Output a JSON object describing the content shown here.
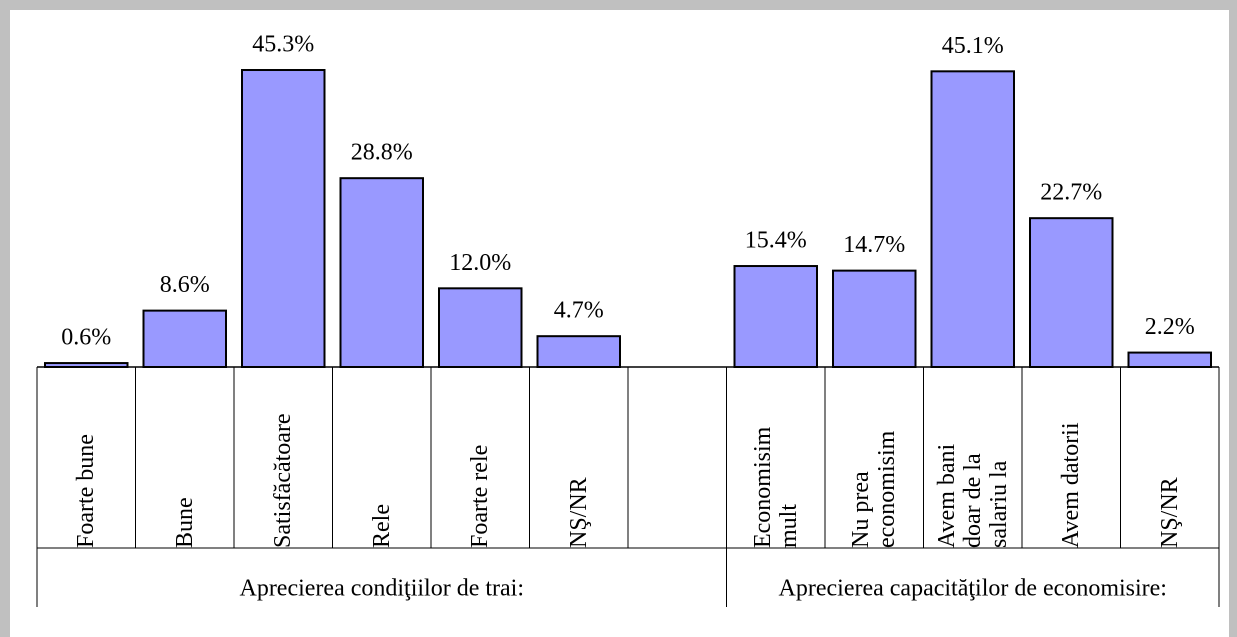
{
  "chart_data": [
    {
      "type": "bar",
      "x_label": "Aprecierea condiţiilor de trai:",
      "color": "#9999ff",
      "categories": [
        "Foarte bune",
        "Bune",
        "Satisfăcătoare",
        "Rele",
        "Foarte rele",
        "NŞ/NR"
      ],
      "values": [
        0.6,
        8.6,
        45.3,
        28.8,
        12.0,
        4.7
      ],
      "value_labels": [
        "0.6%",
        "8.6%",
        "45.3%",
        "28.8%",
        "12.0%",
        "4.7%"
      ]
    },
    {
      "type": "bar",
      "x_label": "Aprecierea capacităţilor de economisire:",
      "color": "#9999ff",
      "categories": [
        "Economisim\nmult",
        "Nu prea\neconomisim",
        "Avem bani\ndoar de la\nsalariu la",
        "Avem datorii",
        "NŞ/NR"
      ],
      "values": [
        15.4,
        14.7,
        45.1,
        22.7,
        2.2
      ],
      "value_labels": [
        "15.4%",
        "14.7%",
        "45.1%",
        "22.7%",
        "2.2%"
      ]
    }
  ]
}
